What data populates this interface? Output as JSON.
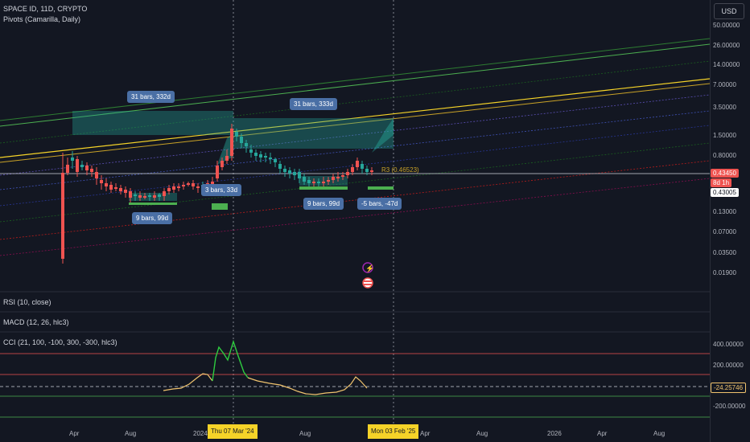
{
  "legend": {
    "symbol": "SPACE ID, 11D, CRYPTO",
    "indicator_pivots": "Pivots (Camarilla, Daily)",
    "rsi": "RSI (10, close)",
    "macd": "MACD (12, 26, hlc3)",
    "cci": "CCI (21, 100, -100, 300, -300, hlc3)"
  },
  "currency_button": "USD",
  "price_axis": [
    "50.00000",
    "26.00000",
    "14.00000",
    "7.00000",
    "3.50000",
    "1.50000",
    "0.80000",
    "0.43450",
    "0.43005",
    "0.13000",
    "0.07000",
    "0.03500",
    "0.01900"
  ],
  "price_badges": {
    "last": "0.43450",
    "countdown": "8d 1h",
    "secondary": "0.43005"
  },
  "cci_axis": [
    "400.00000",
    "200.00000",
    "-24.25746",
    "-200.00000"
  ],
  "x_axis": [
    "Apr",
    "Aug",
    "2024",
    "Aug",
    "Apr",
    "Aug",
    "2026",
    "Apr",
    "Aug"
  ],
  "x_highlight": {
    "left": "Thu 07 Mar '24",
    "right": "Mon 03 Feb '25"
  },
  "measure_tags": {
    "t1": "31 bars, 332d",
    "t2": "31 bars, 333d",
    "t3": "9 bars, 99d",
    "t4": "3 bars, 33d",
    "t5": "9 bars, 99d",
    "t6": "-5 bars, -47d"
  },
  "pivot_label": "R3 (0.46523)",
  "colors": {
    "up": "#26a69a",
    "down": "#ef5350",
    "accent": "#2962ff",
    "yellow": "#f5d328"
  }
}
